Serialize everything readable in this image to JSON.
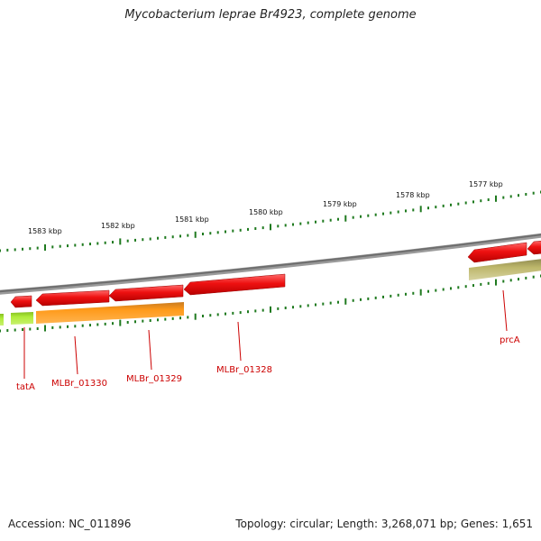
{
  "title": "Mycobacterium leprae Br4923, complete genome",
  "footer": {
    "accession": "Accession: NC_011896",
    "summary": "Topology: circular; Length: 3,268,071 bp; Genes: 1,651"
  },
  "scale_labels": [
    "1583 kbp",
    "1582 kbp",
    "1581 kbp",
    "1580 kbp",
    "1579 kbp",
    "1578 kbp",
    "1577 kbp"
  ],
  "gene_labels": [
    "tatA",
    "MLBr_01330",
    "MLBr_01329",
    "MLBr_01328",
    "prcA"
  ],
  "colors": {
    "tick": "#1f7a1f",
    "backbone": "#7a7a7a",
    "cds": "#e81010",
    "gene_label": "#cc0000",
    "orange_feature": "#ff9a1a",
    "lime_feature": "#a8e030",
    "olive_feature": "#bdb76b"
  }
}
